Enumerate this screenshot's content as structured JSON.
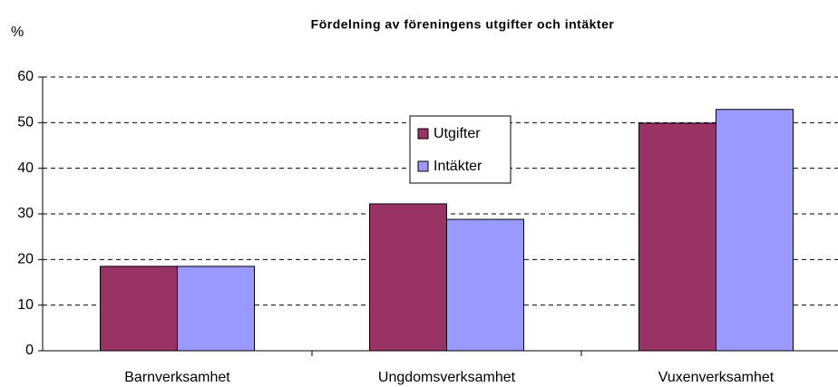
{
  "chart_data": {
    "type": "bar",
    "title": "Fördelning av föreningens utgifter och intäkter",
    "y_label": "%",
    "categories": [
      "Barnverksamhet",
      "Ungdomsverksamhet",
      "Vuxenverksamhet"
    ],
    "series": [
      {
        "name": "Utgifter",
        "color": "#993366",
        "values": [
          18.5,
          32.2,
          49.9
        ]
      },
      {
        "name": "Intäkter",
        "color": "#9999ff",
        "values": [
          18.5,
          28.8,
          52.9
        ]
      }
    ],
    "ylim": [
      0,
      60
    ],
    "yticks": [
      0,
      10,
      20,
      30,
      40,
      50,
      60
    ],
    "grid": true,
    "legend_position": "center"
  }
}
